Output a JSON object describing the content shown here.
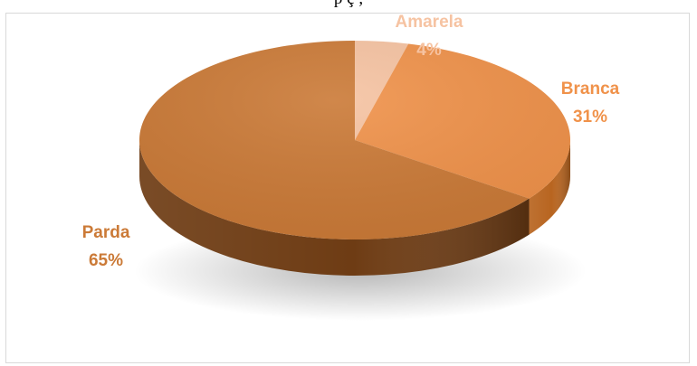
{
  "header_fragment": "p                    ç   ,",
  "chart_data": {
    "type": "pie",
    "title": "",
    "three_d": true,
    "categories": [
      "Amarela",
      "Branca",
      "Parda"
    ],
    "values": [
      4,
      31,
      65
    ],
    "value_labels": [
      "4%",
      "31%",
      "65%"
    ],
    "colors": [
      "#f6c3a2",
      "#f0924a",
      "#cb7a37"
    ],
    "side_colors": [
      "#d9a07a",
      "#b86520",
      "#6e3c14"
    ],
    "label_colors": [
      "#f6c3a2",
      "#f0924a",
      "#cb7a37"
    ],
    "legend": "none"
  }
}
